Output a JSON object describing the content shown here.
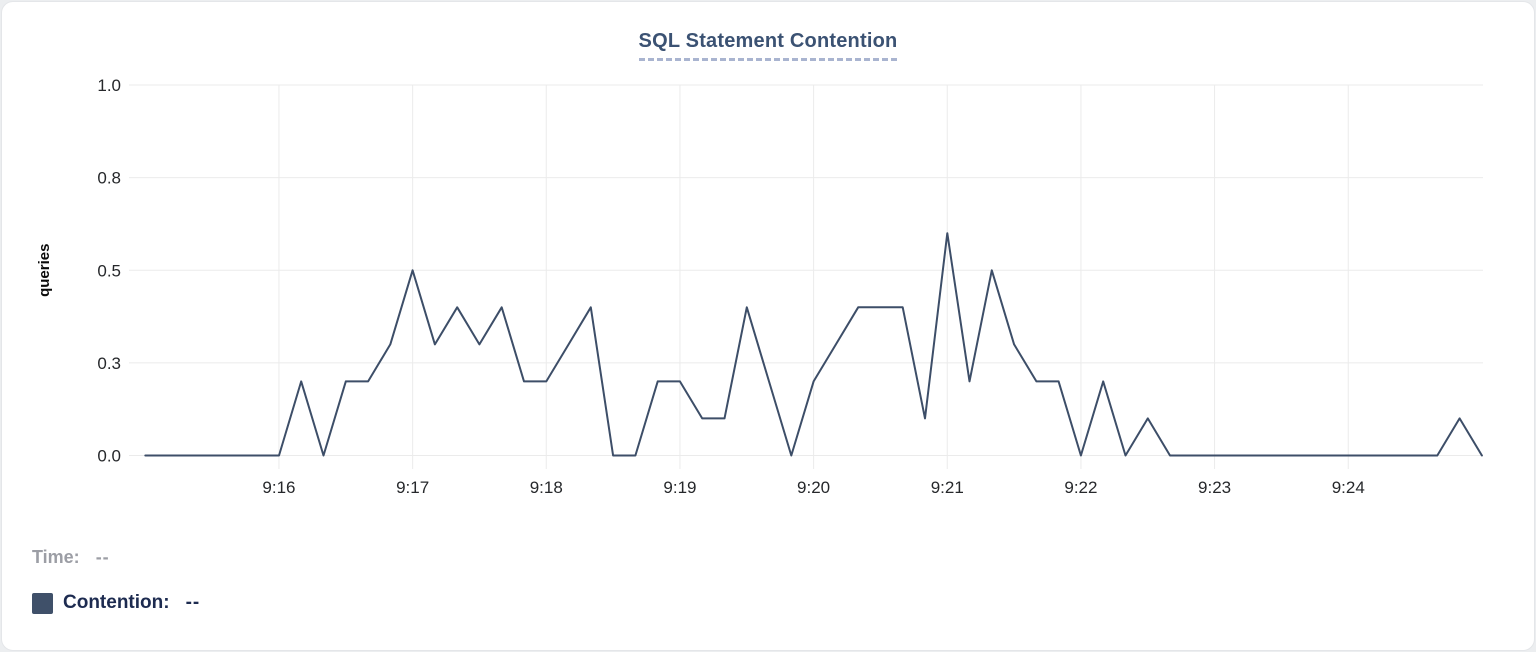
{
  "header": {
    "title": "SQL Statement Contention"
  },
  "legend": {
    "time_label": "Time:",
    "time_value": "--",
    "contention_label": "Contention:",
    "contention_value": "--",
    "swatch_color": "#3f5069"
  },
  "colors": {
    "line": "#3d4e68",
    "gridline": "#ebebeb",
    "title": "#3b5273",
    "title_underline": "#a9b4d0",
    "axis_text": "#26282b",
    "legend_time": "#9c9ea5",
    "legend_contention": "#1d2b50"
  },
  "chart_data": {
    "type": "line",
    "title": "SQL Statement Contention",
    "xlabel": "",
    "ylabel": "queries",
    "ylim": [
      0,
      1
    ],
    "grid": true,
    "legend_position": "bottom-left",
    "x_range": [
      "9:15:00",
      "9:25:00"
    ],
    "sample_interval_seconds": 10,
    "y_axis": {
      "ticks": [
        {
          "label": "1.0",
          "value": 1.0
        },
        {
          "label": "0.8",
          "value": 0.75
        },
        {
          "label": "0.5",
          "value": 0.5
        },
        {
          "label": "0.3",
          "value": 0.25
        },
        {
          "label": "0.0",
          "value": 0.0
        }
      ]
    },
    "x_axis": {
      "ticks": [
        {
          "label": "9:16",
          "minutes_from_start": 1
        },
        {
          "label": "9:17",
          "minutes_from_start": 2
        },
        {
          "label": "9:18",
          "minutes_from_start": 3
        },
        {
          "label": "9:19",
          "minutes_from_start": 4
        },
        {
          "label": "9:20",
          "minutes_from_start": 5
        },
        {
          "label": "9:21",
          "minutes_from_start": 6
        },
        {
          "label": "9:22",
          "minutes_from_start": 7
        },
        {
          "label": "9:23",
          "minutes_from_start": 8
        },
        {
          "label": "9:24",
          "minutes_from_start": 9
        }
      ]
    },
    "series": [
      {
        "name": "Contention",
        "color": "#3d4e68",
        "times": [
          "9:15:00",
          "9:15:10",
          "9:15:20",
          "9:15:30",
          "9:15:40",
          "9:15:50",
          "9:16:00",
          "9:16:10",
          "9:16:20",
          "9:16:30",
          "9:16:40",
          "9:16:50",
          "9:17:00",
          "9:17:10",
          "9:17:20",
          "9:17:30",
          "9:17:40",
          "9:17:50",
          "9:18:00",
          "9:18:10",
          "9:18:20",
          "9:18:30",
          "9:18:40",
          "9:18:50",
          "9:19:00",
          "9:19:10",
          "9:19:20",
          "9:19:30",
          "9:19:40",
          "9:19:50",
          "9:20:00",
          "9:20:10",
          "9:20:20",
          "9:20:30",
          "9:20:40",
          "9:20:50",
          "9:21:00",
          "9:21:10",
          "9:21:20",
          "9:21:30",
          "9:21:40",
          "9:21:50",
          "9:22:00",
          "9:22:10",
          "9:22:20",
          "9:22:30",
          "9:22:40",
          "9:22:50",
          "9:23:00",
          "9:23:10",
          "9:23:20",
          "9:23:30",
          "9:23:40",
          "9:23:50",
          "9:24:00",
          "9:24:10",
          "9:24:20",
          "9:24:30",
          "9:24:40",
          "9:24:50",
          "9:25:00"
        ],
        "values": [
          0,
          0,
          0,
          0,
          0,
          0,
          0,
          0.2,
          0,
          0.2,
          0.2,
          0.3,
          0.5,
          0.3,
          0.4,
          0.3,
          0.4,
          0.2,
          0.2,
          0.3,
          0.4,
          0,
          0,
          0.2,
          0.2,
          0.1,
          0.1,
          0.4,
          0.2,
          0,
          0.2,
          0.3,
          0.4,
          0.4,
          0.4,
          0.1,
          0.6,
          0.2,
          0.5,
          0.3,
          0.2,
          0.2,
          0,
          0.2,
          0,
          0.1,
          0,
          0,
          0,
          0,
          0,
          0,
          0,
          0,
          0,
          0,
          0,
          0,
          0,
          0.1,
          0
        ]
      }
    ]
  }
}
